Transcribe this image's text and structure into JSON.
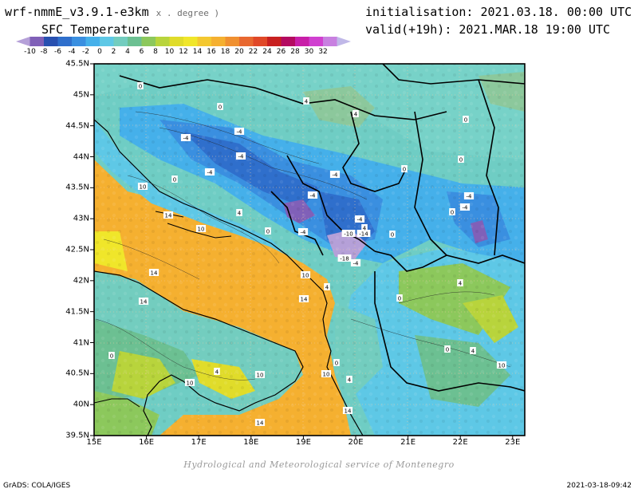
{
  "header": {
    "model": "wrf-nmmE_v3.9.1-e3km",
    "units": "x . degree )",
    "variable": "SFC Temperature",
    "initialisation": "initialisation: 2021.03.18. 00:00 UTC",
    "valid": "valid(+19h): 2021.MAR.18 19:00 UTC"
  },
  "colorbar": {
    "ticks": [
      "-10",
      "-8",
      "-6",
      "-4",
      "-2",
      "0",
      "2",
      "4",
      "6",
      "8",
      "10",
      "12",
      "14",
      "16",
      "18",
      "20",
      "22",
      "24",
      "26",
      "28",
      "30",
      "32"
    ],
    "colors": [
      "#b5a0d8",
      "#8060b8",
      "#2850b0",
      "#2f6fcc",
      "#3a8fe0",
      "#45b0ea",
      "#5ec8e6",
      "#73cdbf",
      "#6cc092",
      "#8cc85c",
      "#b8d43c",
      "#e0dc2a",
      "#f0e62a",
      "#f4c830",
      "#f5b030",
      "#f09030",
      "#e86830",
      "#e04828",
      "#c82020",
      "#b40a60",
      "#c81ea8",
      "#d040d0",
      "#c880e0",
      "#c0b8e8"
    ]
  },
  "map": {
    "lat_labels": [
      "45.5N",
      "45N",
      "44.5N",
      "44N",
      "43.5N",
      "43N",
      "42.5N",
      "42N",
      "41.5N",
      "41N",
      "40.5N",
      "40N",
      "39.5N"
    ],
    "lon_labels": [
      "15E",
      "16E",
      "17E",
      "18E",
      "19E",
      "20E",
      "21E",
      "22E",
      "23E"
    ],
    "contour_labels": [
      {
        "t": "-4"
      },
      {
        "t": "-4"
      },
      {
        "t": "-4"
      },
      {
        "t": "-4"
      },
      {
        "t": "-4"
      },
      {
        "t": "-4"
      },
      {
        "t": "-4"
      },
      {
        "t": "-4"
      },
      {
        "t": "-4"
      },
      {
        "t": "-10"
      },
      {
        "t": "-14"
      },
      {
        "t": "-18"
      },
      {
        "t": "-4"
      },
      {
        "t": "-4"
      },
      {
        "t": "0"
      },
      {
        "t": "0"
      },
      {
        "t": "0"
      },
      {
        "t": "0"
      },
      {
        "t": "0"
      },
      {
        "t": "0"
      },
      {
        "t": "0"
      },
      {
        "t": "0"
      },
      {
        "t": "0"
      },
      {
        "t": "0"
      },
      {
        "t": "0"
      },
      {
        "t": "0"
      },
      {
        "t": "0"
      },
      {
        "t": "4"
      },
      {
        "t": "4"
      },
      {
        "t": "4"
      },
      {
        "t": "4"
      },
      {
        "t": "4"
      },
      {
        "t": "4"
      },
      {
        "t": "4"
      },
      {
        "t": "4"
      },
      {
        "t": "4"
      },
      {
        "t": "10"
      },
      {
        "t": "10"
      },
      {
        "t": "10"
      },
      {
        "t": "10"
      },
      {
        "t": "10"
      },
      {
        "t": "10"
      },
      {
        "t": "10"
      },
      {
        "t": "14"
      },
      {
        "t": "14"
      },
      {
        "t": "14"
      },
      {
        "t": "14"
      },
      {
        "t": "14"
      },
      {
        "t": "14"
      }
    ]
  },
  "footer": {
    "credit": "Hydrological and Meteorological service of Montenegro",
    "grads": "GrADS: COLA/IGES",
    "timestamp": "2021-03-18-09:42"
  }
}
